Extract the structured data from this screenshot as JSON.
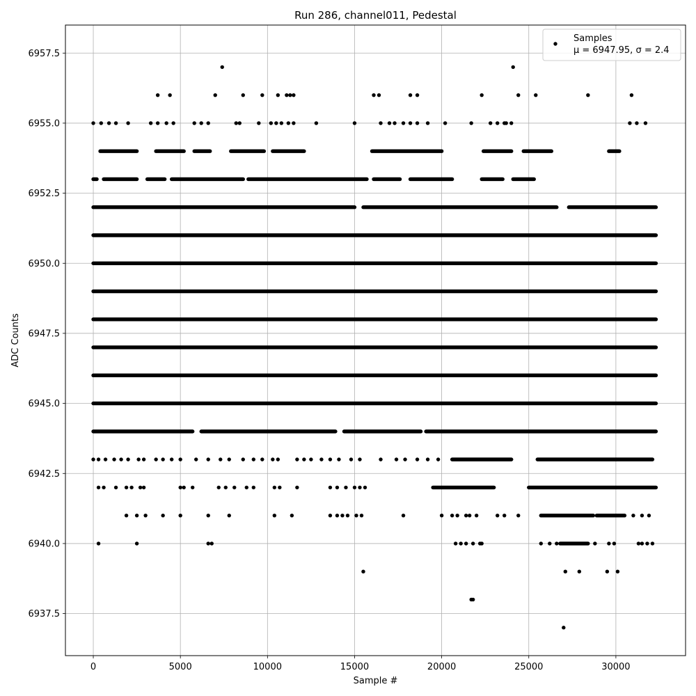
{
  "chart_data": {
    "type": "scatter",
    "title": "Run 286, channel011, Pedestal",
    "xlabel": "Sample #",
    "ylabel": "ADC Counts",
    "xlim": [
      -1600,
      34000
    ],
    "ylim": [
      6936,
      6958.5
    ],
    "x_ticks": [
      0,
      5000,
      10000,
      15000,
      20000,
      25000,
      30000
    ],
    "y_ticks": [
      6937.5,
      6940.0,
      6942.5,
      6945.0,
      6947.5,
      6950.0,
      6952.5,
      6955.0,
      6957.5
    ],
    "x_tick_labels": [
      "0",
      "5000",
      "10000",
      "15000",
      "20000",
      "25000",
      "30000"
    ],
    "y_tick_labels": [
      "6937.5",
      "6940.0",
      "6942.5",
      "6945.0",
      "6947.5",
      "6950.0",
      "6952.5",
      "6955.0",
      "6957.5"
    ],
    "grid": true,
    "marker_color": "#000000",
    "legend": {
      "placement": "top-right",
      "entries": [
        {
          "label": "Samples",
          "sublabel": "μ = 6947.95, σ = 2.4"
        }
      ]
    },
    "series": [
      {
        "name": "Samples",
        "levels": [
          {
            "y": 6952,
            "segments": [
              [
                0,
                15000
              ],
              [
                15500,
                26600
              ],
              [
                27300,
                32300
              ]
            ]
          },
          {
            "y": 6951,
            "segments": [
              [
                0,
                32300
              ]
            ]
          },
          {
            "y": 6950,
            "segments": [
              [
                0,
                32300
              ]
            ]
          },
          {
            "y": 6949,
            "segments": [
              [
                0,
                32300
              ]
            ]
          },
          {
            "y": 6948,
            "segments": [
              [
                0,
                32300
              ]
            ]
          },
          {
            "y": 6947,
            "segments": [
              [
                0,
                32300
              ]
            ]
          },
          {
            "y": 6946,
            "segments": [
              [
                0,
                32300
              ]
            ]
          },
          {
            "y": 6945,
            "segments": [
              [
                0,
                32300
              ]
            ]
          },
          {
            "y": 6944,
            "segments": [
              [
                0,
                5700
              ],
              [
                6200,
                13900
              ],
              [
                14400,
                18800
              ],
              [
                19100,
                32300
              ]
            ]
          },
          {
            "y": 6953,
            "segments": [
              [
                0,
                200
              ],
              [
                600,
                2500
              ],
              [
                3100,
                4100
              ],
              [
                4500,
                8600
              ],
              [
                8900,
                15700
              ],
              [
                16100,
                17600
              ],
              [
                18200,
                20600
              ],
              [
                22300,
                23500
              ],
              [
                24100,
                25300
              ]
            ]
          },
          {
            "y": 6954,
            "segments": [
              [
                400,
                2500
              ],
              [
                3600,
                5200
              ],
              [
                5800,
                6700
              ],
              [
                7900,
                9800
              ],
              [
                10300,
                12100
              ],
              [
                16000,
                20000
              ],
              [
                22400,
                24000
              ],
              [
                24700,
                26300
              ],
              [
                29600,
                30200
              ]
            ]
          },
          {
            "y": 6943,
            "segments": [
              [
                20600,
                24000
              ],
              [
                25500,
                32100
              ]
            ]
          },
          {
            "y": 6942,
            "segments": [
              [
                19500,
                23000
              ],
              [
                25000,
                32300
              ]
            ]
          },
          {
            "y": 6941,
            "segments": [
              [
                25700,
                28700
              ],
              [
                28900,
                30500
              ]
            ]
          },
          {
            "y": 6940,
            "segments": [
              [
                26800,
                28400
              ]
            ]
          }
        ],
        "points": [
          [
            0,
            6955
          ],
          [
            450,
            6955
          ],
          [
            900,
            6955
          ],
          [
            1300,
            6955
          ],
          [
            2000,
            6955
          ],
          [
            3300,
            6955
          ],
          [
            3700,
            6955
          ],
          [
            4200,
            6955
          ],
          [
            4600,
            6955
          ],
          [
            5800,
            6955
          ],
          [
            6200,
            6955
          ],
          [
            6600,
            6955
          ],
          [
            8200,
            6955
          ],
          [
            8400,
            6955
          ],
          [
            9500,
            6955
          ],
          [
            10200,
            6955
          ],
          [
            10500,
            6955
          ],
          [
            10800,
            6955
          ],
          [
            11200,
            6955
          ],
          [
            11500,
            6955
          ],
          [
            12800,
            6955
          ],
          [
            15000,
            6955
          ],
          [
            16500,
            6955
          ],
          [
            17000,
            6955
          ],
          [
            17300,
            6955
          ],
          [
            17800,
            6955
          ],
          [
            18200,
            6955
          ],
          [
            18600,
            6955
          ],
          [
            19200,
            6955
          ],
          [
            20200,
            6955
          ],
          [
            21700,
            6955
          ],
          [
            22800,
            6955
          ],
          [
            23200,
            6955
          ],
          [
            23600,
            6955
          ],
          [
            23700,
            6955
          ],
          [
            24000,
            6955
          ],
          [
            30800,
            6955
          ],
          [
            31200,
            6955
          ],
          [
            31700,
            6955
          ],
          [
            3700,
            6956
          ],
          [
            4400,
            6956
          ],
          [
            7000,
            6956
          ],
          [
            8600,
            6956
          ],
          [
            9700,
            6956
          ],
          [
            10600,
            6956
          ],
          [
            11100,
            6956
          ],
          [
            11300,
            6956
          ],
          [
            11500,
            6956
          ],
          [
            16100,
            6956
          ],
          [
            16400,
            6956
          ],
          [
            18200,
            6956
          ],
          [
            18600,
            6956
          ],
          [
            22300,
            6956
          ],
          [
            24400,
            6956
          ],
          [
            25400,
            6956
          ],
          [
            28400,
            6956
          ],
          [
            30900,
            6956
          ],
          [
            7400,
            6957
          ],
          [
            24100,
            6957
          ],
          [
            0,
            6943
          ],
          [
            300,
            6943
          ],
          [
            700,
            6943
          ],
          [
            1200,
            6943
          ],
          [
            1600,
            6943
          ],
          [
            2000,
            6943
          ],
          [
            2600,
            6943
          ],
          [
            2900,
            6943
          ],
          [
            3600,
            6943
          ],
          [
            4000,
            6943
          ],
          [
            4500,
            6943
          ],
          [
            5000,
            6943
          ],
          [
            5900,
            6943
          ],
          [
            6600,
            6943
          ],
          [
            7300,
            6943
          ],
          [
            7800,
            6943
          ],
          [
            8600,
            6943
          ],
          [
            9200,
            6943
          ],
          [
            9700,
            6943
          ],
          [
            10300,
            6943
          ],
          [
            10600,
            6943
          ],
          [
            11700,
            6943
          ],
          [
            12100,
            6943
          ],
          [
            12500,
            6943
          ],
          [
            13100,
            6943
          ],
          [
            13600,
            6943
          ],
          [
            14100,
            6943
          ],
          [
            14800,
            6943
          ],
          [
            15300,
            6943
          ],
          [
            16500,
            6943
          ],
          [
            17400,
            6943
          ],
          [
            17900,
            6943
          ],
          [
            18600,
            6943
          ],
          [
            19200,
            6943
          ],
          [
            19800,
            6943
          ],
          [
            300,
            6942
          ],
          [
            600,
            6942
          ],
          [
            1300,
            6942
          ],
          [
            1900,
            6942
          ],
          [
            2200,
            6942
          ],
          [
            2700,
            6942
          ],
          [
            2900,
            6942
          ],
          [
            5000,
            6942
          ],
          [
            5200,
            6942
          ],
          [
            5700,
            6942
          ],
          [
            7200,
            6942
          ],
          [
            7600,
            6942
          ],
          [
            8100,
            6942
          ],
          [
            8800,
            6942
          ],
          [
            9200,
            6942
          ],
          [
            10400,
            6942
          ],
          [
            10700,
            6942
          ],
          [
            11700,
            6942
          ],
          [
            13600,
            6942
          ],
          [
            14000,
            6942
          ],
          [
            14500,
            6942
          ],
          [
            15000,
            6942
          ],
          [
            15300,
            6942
          ],
          [
            15600,
            6942
          ],
          [
            1900,
            6941
          ],
          [
            2500,
            6941
          ],
          [
            3000,
            6941
          ],
          [
            4000,
            6941
          ],
          [
            5000,
            6941
          ],
          [
            6600,
            6941
          ],
          [
            7800,
            6941
          ],
          [
            10400,
            6941
          ],
          [
            11400,
            6941
          ],
          [
            13600,
            6941
          ],
          [
            14000,
            6941
          ],
          [
            14300,
            6941
          ],
          [
            14600,
            6941
          ],
          [
            15100,
            6941
          ],
          [
            15400,
            6941
          ],
          [
            17800,
            6941
          ],
          [
            20000,
            6941
          ],
          [
            20600,
            6941
          ],
          [
            20900,
            6941
          ],
          [
            21400,
            6941
          ],
          [
            21600,
            6941
          ],
          [
            22000,
            6941
          ],
          [
            23200,
            6941
          ],
          [
            23600,
            6941
          ],
          [
            24400,
            6941
          ],
          [
            31000,
            6941
          ],
          [
            31500,
            6941
          ],
          [
            31900,
            6941
          ],
          [
            300,
            6940
          ],
          [
            2500,
            6940
          ],
          [
            6600,
            6940
          ],
          [
            6800,
            6940
          ],
          [
            20800,
            6940
          ],
          [
            21100,
            6940
          ],
          [
            21400,
            6940
          ],
          [
            21800,
            6940
          ],
          [
            22200,
            6940
          ],
          [
            22300,
            6940
          ],
          [
            25700,
            6940
          ],
          [
            26200,
            6940
          ],
          [
            26600,
            6940
          ],
          [
            28800,
            6940
          ],
          [
            29600,
            6940
          ],
          [
            29900,
            6940
          ],
          [
            31300,
            6940
          ],
          [
            31500,
            6940
          ],
          [
            31800,
            6940
          ],
          [
            32100,
            6940
          ],
          [
            15500,
            6939
          ],
          [
            27100,
            6939
          ],
          [
            27900,
            6939
          ],
          [
            29500,
            6939
          ],
          [
            30100,
            6939
          ],
          [
            21700,
            6938
          ],
          [
            21800,
            6938
          ],
          [
            27000,
            6937
          ]
        ]
      }
    ]
  }
}
